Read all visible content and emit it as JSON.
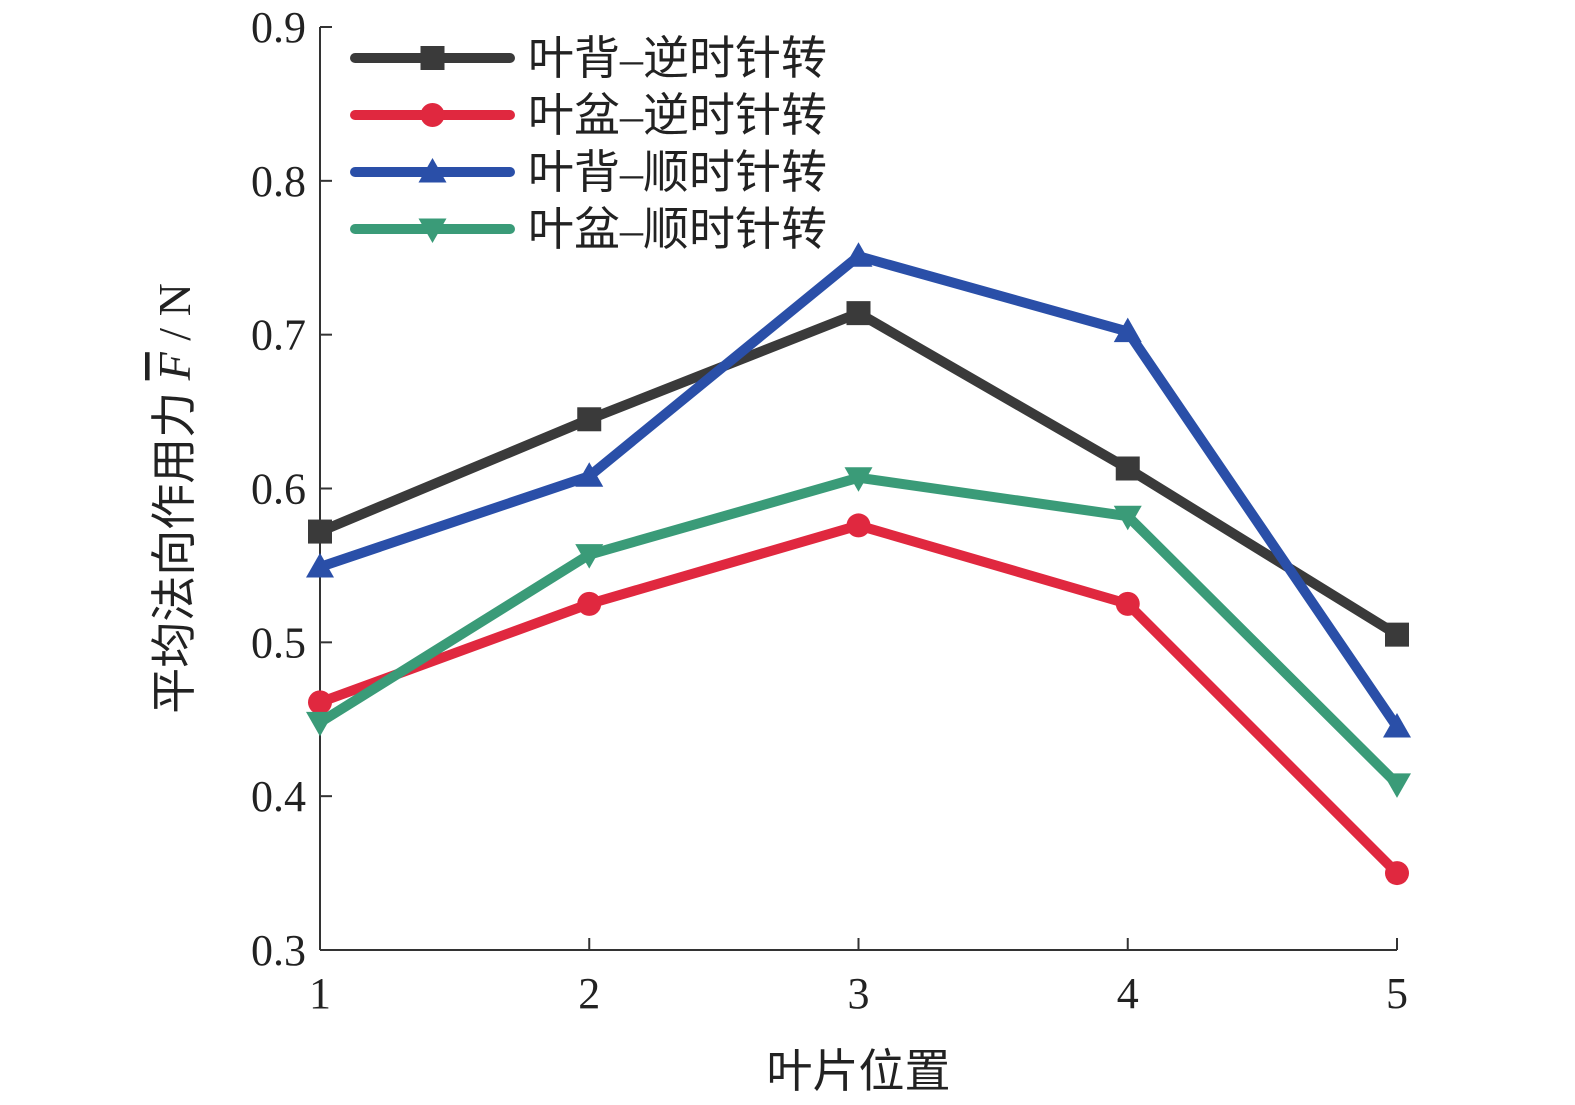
{
  "chart_data": {
    "type": "line",
    "xlabel": "叶片位置",
    "ylabel_main": "平均法向作用力 ",
    "ylabel_symbol": "F",
    "ylabel_unit": " / N",
    "x": [
      1,
      2,
      3,
      4,
      5
    ],
    "xlim": [
      1,
      5
    ],
    "ylim": [
      0.3,
      0.9
    ],
    "yticks": [
      0.3,
      0.4,
      0.5,
      0.6,
      0.7,
      0.8,
      0.9
    ],
    "ytick_labels": [
      "0.3",
      "0.4",
      "0.5",
      "0.6",
      "0.7",
      "0.8",
      "0.9"
    ],
    "xtick_labels": [
      "1",
      "2",
      "3",
      "4",
      "5"
    ],
    "grid": false,
    "legend_position": "top-left",
    "series": [
      {
        "name": "叶背–逆时针转",
        "marker": "square",
        "color": "#3a3a3a",
        "values": [
          0.572,
          0.645,
          0.714,
          0.613,
          0.505
        ]
      },
      {
        "name": "叶盆–逆时针转",
        "marker": "circle",
        "color": "#e0283f",
        "values": [
          0.461,
          0.525,
          0.576,
          0.525,
          0.35
        ]
      },
      {
        "name": "叶背–顺时针转",
        "marker": "triangle-up",
        "color": "#2a4fa8",
        "values": [
          0.549,
          0.608,
          0.751,
          0.702,
          0.445
        ]
      },
      {
        "name": "叶盆–顺时针转",
        "marker": "triangle-down",
        "color": "#3a9b78",
        "values": [
          0.448,
          0.557,
          0.607,
          0.582,
          0.408
        ]
      }
    ]
  }
}
